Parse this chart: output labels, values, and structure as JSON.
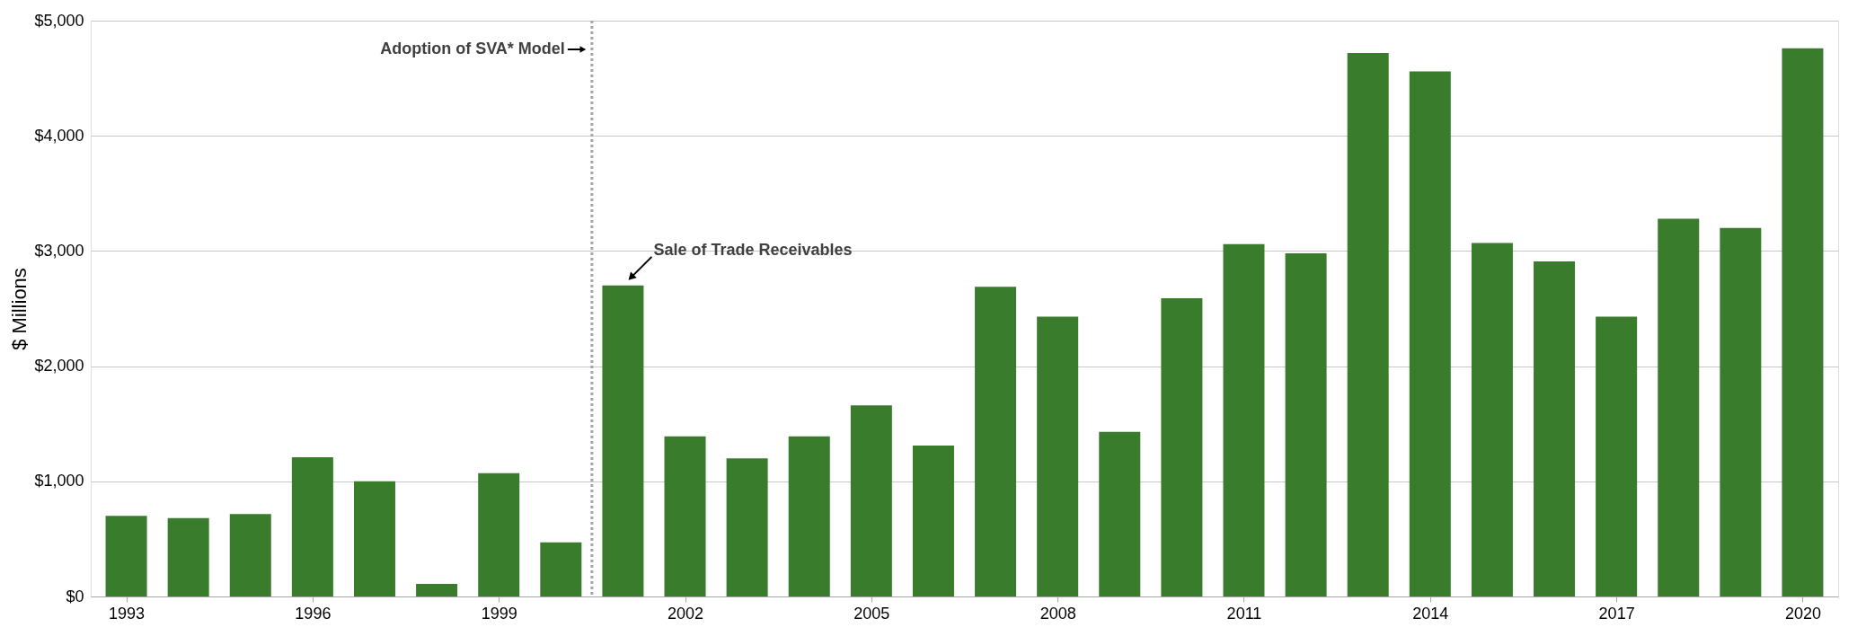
{
  "chart_data": {
    "type": "bar",
    "ylabel": "$ Millions",
    "x": [
      1993,
      1994,
      1995,
      1996,
      1997,
      1998,
      1999,
      2000,
      2001,
      2002,
      2003,
      2004,
      2005,
      2006,
      2007,
      2008,
      2009,
      2010,
      2011,
      2012,
      2013,
      2014,
      2015,
      2016,
      2017,
      2018,
      2019,
      2020
    ],
    "values": [
      700,
      680,
      715,
      1210,
      1000,
      110,
      1070,
      470,
      2700,
      1390,
      1200,
      1390,
      1660,
      1310,
      2690,
      2430,
      1430,
      2590,
      3060,
      2980,
      4720,
      4560,
      3070,
      2910,
      2430,
      3280,
      3200,
      4760
    ],
    "color": "#387c2c",
    "xlim": [
      1992.5,
      2020.5
    ],
    "xticks": [
      1993,
      1996,
      1999,
      2002,
      2005,
      2008,
      2011,
      2014,
      2017,
      2020
    ],
    "ylim": [
      0,
      5000
    ],
    "yticks": [
      {
        "value": 0,
        "label": "$0"
      },
      {
        "value": 1000,
        "label": "$1,000"
      },
      {
        "value": 2000,
        "label": "$2,000"
      },
      {
        "value": 3000,
        "label": "$3,000"
      },
      {
        "value": 4000,
        "label": "$4,000"
      },
      {
        "value": 5000,
        "label": "$5,000"
      }
    ],
    "grid": "y",
    "ref_lines": [
      {
        "axis": "x",
        "value": 2000.5,
        "label": "Adoption of SVA* Model",
        "color": "#a6a6a6",
        "line_style": "dotted"
      }
    ],
    "annotations": [
      {
        "text": "Sale of Trade Receivables",
        "x": 2001,
        "y": 2700
      }
    ]
  }
}
